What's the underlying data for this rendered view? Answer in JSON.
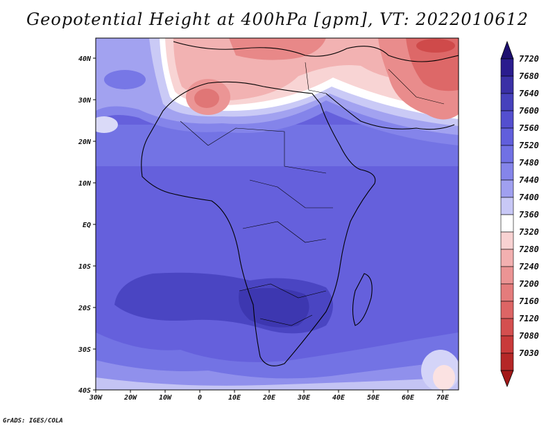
{
  "title": "Geopotential Height at 400hPa [gpm], VT: 2022010612",
  "credit": "GrADS: IGES/COLA",
  "map": {
    "lat_ticks": [
      "40N",
      "30N",
      "20N",
      "10N",
      "EQ",
      "10S",
      "20S",
      "30S",
      "40S"
    ],
    "lon_ticks": [
      "30W",
      "20W",
      "10W",
      "0",
      "10E",
      "20E",
      "30E",
      "40E",
      "50E",
      "60E",
      "70E"
    ]
  },
  "colorbar": {
    "levels": [
      {
        "label": "7720",
        "color": "#2a1c8e"
      },
      {
        "label": "7680",
        "color": "#3a30a6"
      },
      {
        "label": "7640",
        "color": "#4641bc"
      },
      {
        "label": "7600",
        "color": "#544fcf"
      },
      {
        "label": "7560",
        "color": "#615fdc"
      },
      {
        "label": "7520",
        "color": "#7171e4"
      },
      {
        "label": "7480",
        "color": "#8585ea"
      },
      {
        "label": "7440",
        "color": "#a0a0f0"
      },
      {
        "label": "7400",
        "color": "#c8c8f6"
      },
      {
        "label": "7360",
        "color": "#ffffff"
      },
      {
        "label": "7320",
        "color": "#f8d2d2"
      },
      {
        "label": "7280",
        "color": "#f2b0b0"
      },
      {
        "label": "7240",
        "color": "#eb9494"
      },
      {
        "label": "7200",
        "color": "#e47c7c"
      },
      {
        "label": "7160",
        "color": "#dd6565"
      },
      {
        "label": "7120",
        "color": "#d44f4f"
      },
      {
        "label": "7080",
        "color": "#c93a3a"
      },
      {
        "label": "7030",
        "color": "#b52727"
      }
    ],
    "top_arrow_color": "#1e1070",
    "bottom_arrow_color": "#a31818"
  }
}
